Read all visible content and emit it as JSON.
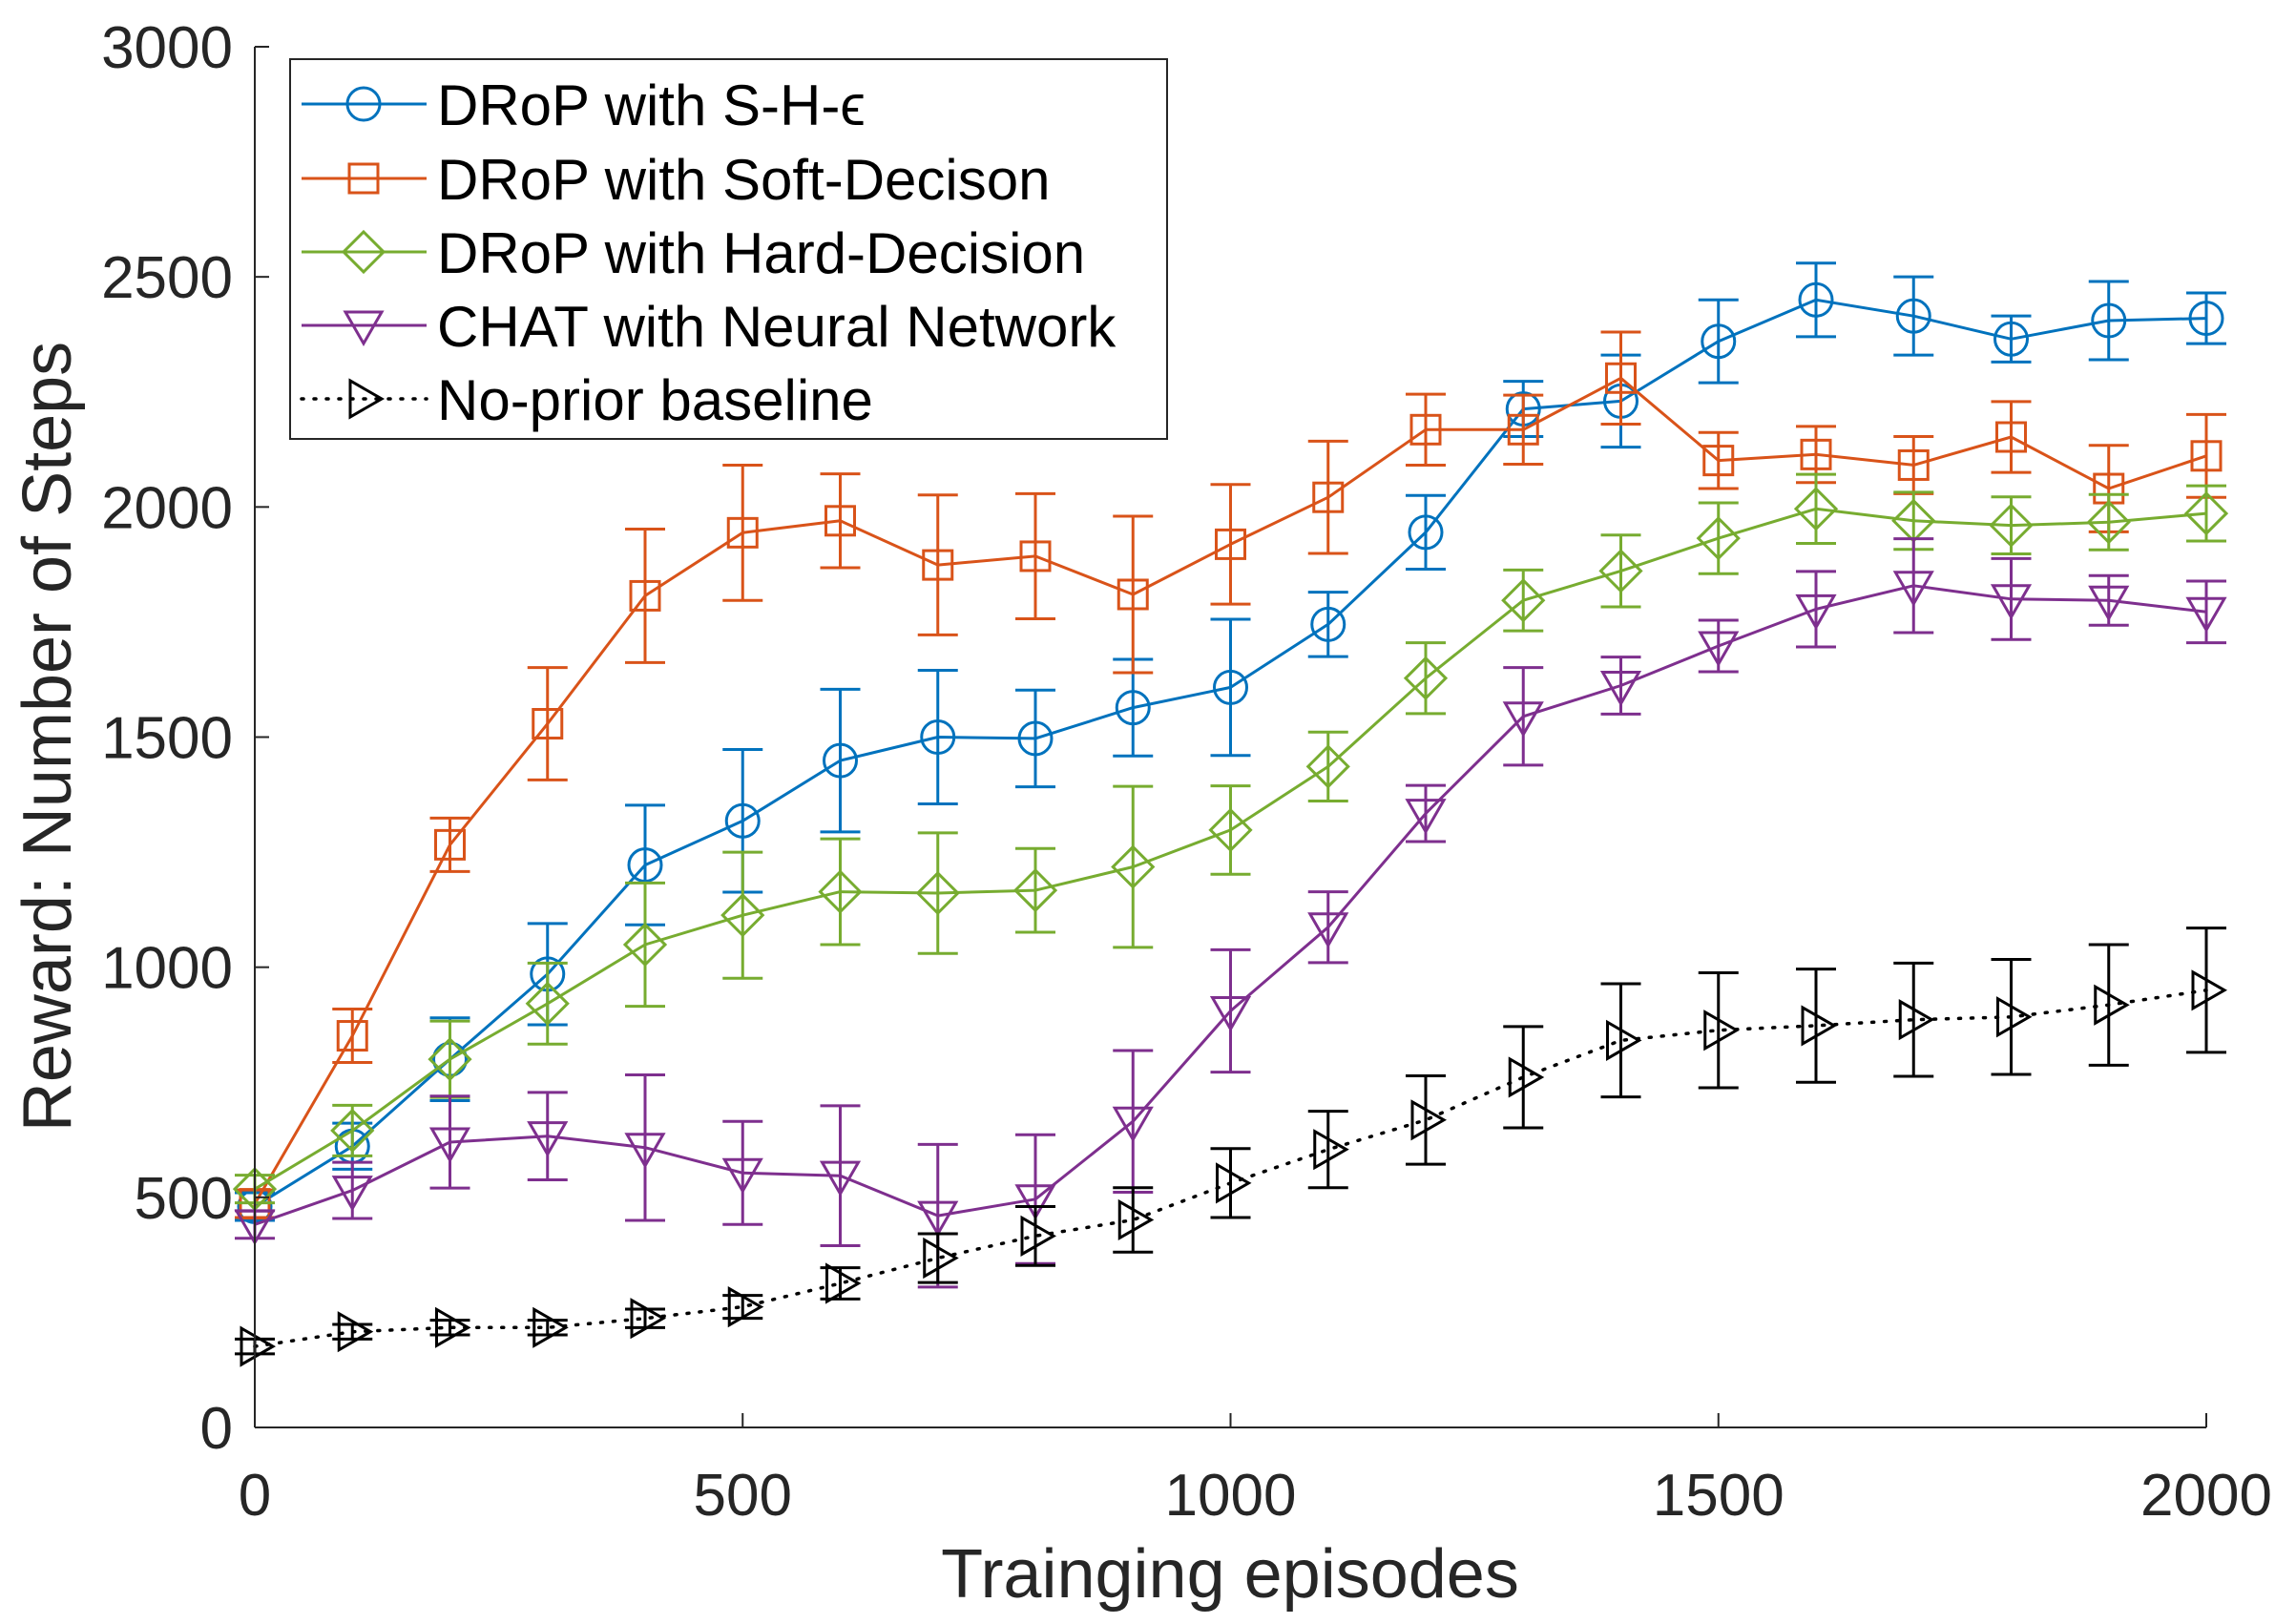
{
  "chart_data": {
    "type": "line",
    "title": "",
    "xlabel": "Trainging episodes",
    "ylabel": "Reward: Number of Steps",
    "xlim": [
      0,
      2000
    ],
    "ylim": [
      0,
      3000
    ],
    "xticks": [
      0,
      500,
      1000,
      1500,
      2000
    ],
    "yticks": [
      0,
      500,
      1000,
      1500,
      2000,
      2500,
      3000
    ],
    "grid": false,
    "legend_position": "top-left",
    "x": [
      0,
      100,
      200,
      300,
      400,
      500,
      600,
      700,
      800,
      900,
      1000,
      1100,
      1200,
      1300,
      1400,
      1500,
      1600,
      1700,
      1800,
      1900,
      2000
    ],
    "series": [
      {
        "name": "DRoP with S-H-ϵ",
        "color": "#0072BD",
        "marker": "circle",
        "line_style": "solid",
        "values": [
          480,
          611,
          800,
          985,
          1222,
          1318,
          1449,
          1500,
          1497,
          1564,
          1608,
          1745,
          1945,
          2213,
          2230,
          2360,
          2450,
          2415,
          2365,
          2405,
          2410
        ],
        "errors": [
          30,
          50,
          90,
          110,
          130,
          155,
          155,
          145,
          105,
          105,
          148,
          70,
          80,
          60,
          100,
          90,
          80,
          85,
          50,
          85,
          55
        ]
      },
      {
        "name": "DRoP with Soft-Decison",
        "color": "#D95319",
        "marker": "square",
        "line_style": "solid",
        "values": [
          486,
          851,
          1266,
          1529,
          1807,
          1944,
          1970,
          1874,
          1893,
          1810,
          1919,
          2021,
          2168,
          2168,
          2280,
          2101,
          2114,
          2091,
          2152,
          2040,
          2111
        ],
        "errors": [
          30,
          58,
          58,
          122,
          145,
          147,
          102,
          152,
          136,
          170,
          130,
          122,
          77,
          75,
          100,
          61,
          61,
          62,
          77,
          94,
          90
        ]
      },
      {
        "name": "DRoP with Hard-Decision",
        "color": "#77AC30",
        "marker": "diamond",
        "line_style": "solid",
        "values": [
          518,
          645,
          800,
          921,
          1049,
          1113,
          1164,
          1161,
          1167,
          1218,
          1298,
          1436,
          1628,
          1797,
          1861,
          1932,
          1996,
          1970,
          1960,
          1967,
          1986
        ],
        "errors": [
          30,
          55,
          83,
          88,
          134,
          137,
          115,
          131,
          91,
          175,
          96,
          75,
          77,
          66,
          78,
          77,
          75,
          62,
          62,
          60,
          60
        ]
      },
      {
        "name": "CHAT with Neural Network",
        "color": "#7E2F8E",
        "marker": "triangle-down",
        "line_style": "solid",
        "values": [
          441,
          515,
          620,
          633,
          608,
          553,
          547,
          460,
          496,
          665,
          905,
          1087,
          1334,
          1545,
          1612,
          1698,
          1778,
          1829,
          1800,
          1797,
          1772
        ],
        "errors": [
          30,
          61,
          100,
          95,
          158,
          112,
          152,
          155,
          140,
          154,
          133,
          77,
          61,
          106,
          62,
          56,
          82,
          102,
          88,
          54,
          67
        ]
      },
      {
        "name": "No-prior baseline",
        "color": "#000000",
        "marker": "triangle-right",
        "line_style": "dotted",
        "values": [
          176,
          208,
          217,
          217,
          237,
          262,
          313,
          368,
          416,
          451,
          531,
          604,
          668,
          761,
          841,
          863,
          873,
          886,
          892,
          918,
          950
        ],
        "errors": [
          16,
          16,
          16,
          16,
          20,
          25,
          34,
          53,
          64,
          70,
          75,
          83,
          96,
          110,
          123,
          125,
          123,
          123,
          125,
          131,
          135
        ]
      }
    ]
  }
}
